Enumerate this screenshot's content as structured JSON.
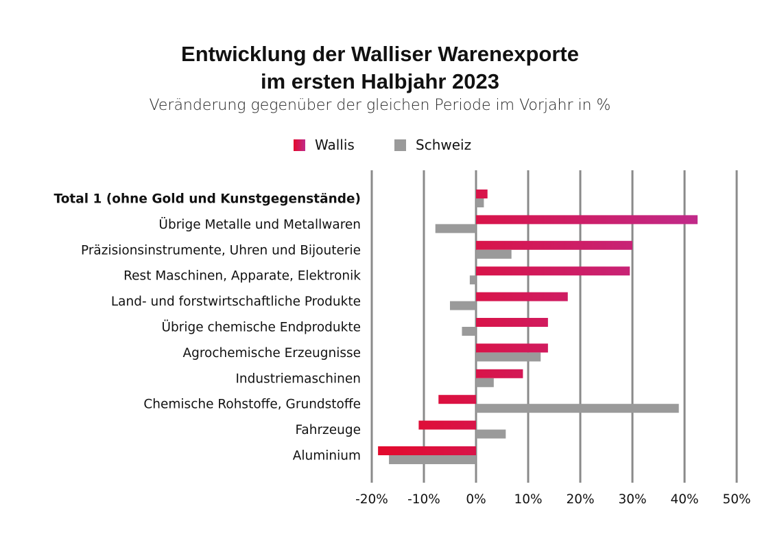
{
  "title_line1": "Entwicklung der Walliser Warenexporte",
  "title_line2": "im ersten Halbjahr 2023",
  "subtitle": "Veränderung gegenüber der gleichen Periode im Vorjahr in %",
  "colors": {
    "wallis_start": "#e30a2c",
    "wallis_end": "#c02a8a",
    "schweiz": "#9a9a9a",
    "grid": "#8a8a8a"
  },
  "chart_data": {
    "type": "bar",
    "orientation": "horizontal",
    "categories": [
      "Total 1 (ohne Gold und Kunstgegenstände)",
      "Übrige Metalle und Metallwaren",
      "Präzisionsinstrumente, Uhren und Bijouterie",
      "Rest Maschinen, Apparate, Elektronik",
      "Land- und forstwirtschaftliche Produkte",
      "Übrige chemische Endprodukte",
      "Agrochemische Erzeugnisse",
      "Industriemaschinen",
      "Chemische Rohstoffe, Grundstoffe",
      "Fahrzeuge",
      "Aluminium"
    ],
    "bold_category": 0,
    "series": [
      {
        "name": "Wallis",
        "values": [
          2.2,
          42.5,
          30.0,
          29.5,
          17.6,
          13.8,
          13.8,
          9.0,
          -7.2,
          -11.0,
          -18.8
        ]
      },
      {
        "name": "Schweiz",
        "values": [
          1.5,
          -7.8,
          6.8,
          -1.2,
          -5.0,
          -2.7,
          12.4,
          3.4,
          38.9,
          5.7,
          -16.7
        ]
      }
    ],
    "xlim": [
      -20,
      50
    ],
    "xticks": [
      -20,
      -10,
      0,
      10,
      20,
      30,
      40,
      50
    ],
    "xtick_labels": [
      "-20%",
      "-10%",
      "0%",
      "10%",
      "20%",
      "30%",
      "40%",
      "50%"
    ],
    "grid": true,
    "legend_position": "top"
  }
}
